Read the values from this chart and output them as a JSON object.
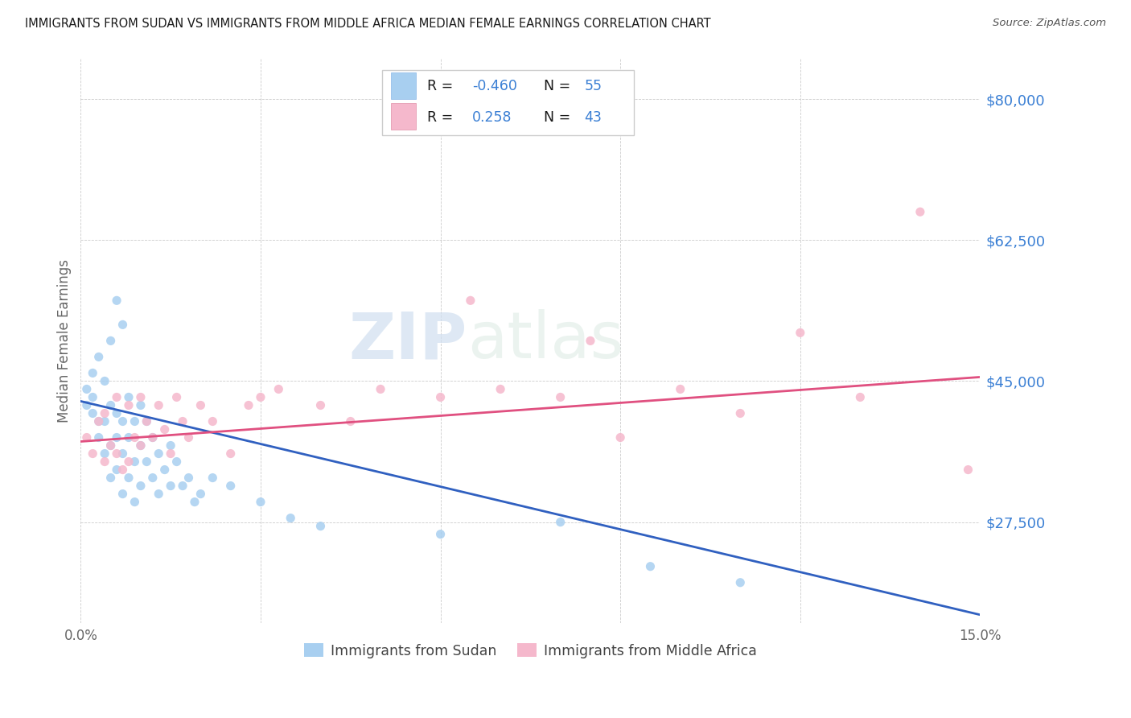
{
  "title": "IMMIGRANTS FROM SUDAN VS IMMIGRANTS FROM MIDDLE AFRICA MEDIAN FEMALE EARNINGS CORRELATION CHART",
  "source": "Source: ZipAtlas.com",
  "ylabel": "Median Female Earnings",
  "xlim": [
    0.0,
    0.15
  ],
  "ylim": [
    15000,
    85000
  ],
  "yticks": [
    27500,
    45000,
    62500,
    80000
  ],
  "ytick_labels": [
    "$27,500",
    "$45,000",
    "$62,500",
    "$80,000"
  ],
  "xticks": [
    0.0,
    0.03,
    0.06,
    0.09,
    0.12,
    0.15
  ],
  "xtick_labels": [
    "0.0%",
    "",
    "",
    "",
    "",
    "15.0%"
  ],
  "sudan_R": -0.46,
  "sudan_N": 55,
  "middleafrica_R": 0.258,
  "middleafrica_N": 43,
  "sudan_color": "#a8cff0",
  "sudan_line_color": "#3060c0",
  "middleafrica_color": "#f5b8cc",
  "middleafrica_line_color": "#e05080",
  "watermark_zip": "ZIP",
  "watermark_atlas": "atlas",
  "sudan_scatter_x": [
    0.001,
    0.001,
    0.002,
    0.002,
    0.002,
    0.003,
    0.003,
    0.003,
    0.004,
    0.004,
    0.004,
    0.005,
    0.005,
    0.005,
    0.005,
    0.006,
    0.006,
    0.006,
    0.006,
    0.007,
    0.007,
    0.007,
    0.007,
    0.008,
    0.008,
    0.008,
    0.009,
    0.009,
    0.009,
    0.01,
    0.01,
    0.01,
    0.011,
    0.011,
    0.012,
    0.012,
    0.013,
    0.013,
    0.014,
    0.015,
    0.015,
    0.016,
    0.017,
    0.018,
    0.019,
    0.02,
    0.022,
    0.025,
    0.03,
    0.035,
    0.04,
    0.06,
    0.08,
    0.095,
    0.11
  ],
  "sudan_scatter_y": [
    42000,
    44000,
    41000,
    43000,
    46000,
    38000,
    40000,
    48000,
    36000,
    40000,
    45000,
    33000,
    37000,
    42000,
    50000,
    34000,
    38000,
    41000,
    55000,
    31000,
    36000,
    40000,
    52000,
    33000,
    38000,
    43000,
    30000,
    35000,
    40000,
    32000,
    37000,
    42000,
    35000,
    40000,
    33000,
    38000,
    31000,
    36000,
    34000,
    32000,
    37000,
    35000,
    32000,
    33000,
    30000,
    31000,
    33000,
    32000,
    30000,
    28000,
    27000,
    26000,
    27500,
    22000,
    20000
  ],
  "middleafrica_scatter_x": [
    0.001,
    0.002,
    0.003,
    0.004,
    0.004,
    0.005,
    0.006,
    0.006,
    0.007,
    0.008,
    0.008,
    0.009,
    0.01,
    0.01,
    0.011,
    0.012,
    0.013,
    0.014,
    0.015,
    0.016,
    0.017,
    0.018,
    0.02,
    0.022,
    0.025,
    0.028,
    0.03,
    0.033,
    0.04,
    0.045,
    0.05,
    0.06,
    0.065,
    0.07,
    0.08,
    0.085,
    0.09,
    0.1,
    0.11,
    0.12,
    0.13,
    0.14,
    0.148
  ],
  "middleafrica_scatter_y": [
    38000,
    36000,
    40000,
    35000,
    41000,
    37000,
    36000,
    43000,
    34000,
    35000,
    42000,
    38000,
    37000,
    43000,
    40000,
    38000,
    42000,
    39000,
    36000,
    43000,
    40000,
    38000,
    42000,
    40000,
    36000,
    42000,
    43000,
    44000,
    42000,
    40000,
    44000,
    43000,
    55000,
    44000,
    43000,
    50000,
    38000,
    44000,
    41000,
    51000,
    43000,
    66000,
    34000
  ],
  "sudan_line_x0": 0.0,
  "sudan_line_y0": 42500,
  "sudan_line_x1": 0.15,
  "sudan_line_y1": 16000,
  "ma_line_x0": 0.0,
  "ma_line_y0": 37500,
  "ma_line_x1": 0.15,
  "ma_line_y1": 45500
}
